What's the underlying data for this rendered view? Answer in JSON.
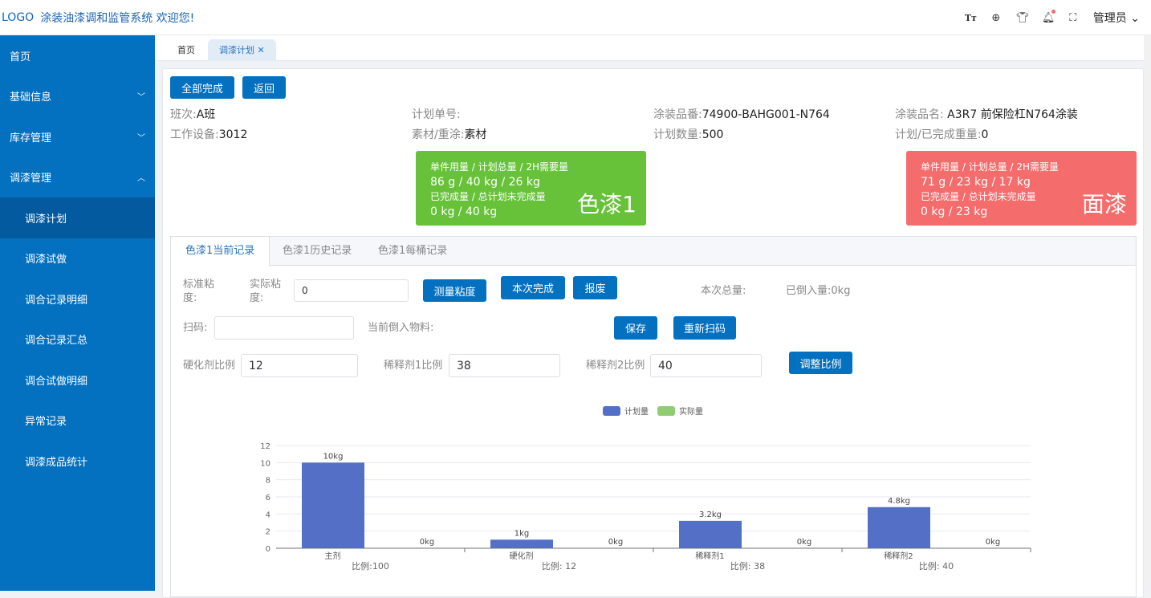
{
  "header": {
    "logo": "LOGO",
    "title": "涂装油漆调和监管系统 欢迎您!",
    "icons": [
      "font-size-icon",
      "plus-circle-icon",
      "shirt-icon",
      "bell-icon",
      "fullscreen-icon"
    ],
    "user": "管理员"
  },
  "sidebar": {
    "items": [
      {
        "label": "首页"
      },
      {
        "label": "基础信息",
        "arrow": "chevron-down"
      },
      {
        "label": "库存管理",
        "arrow": "chevron-down"
      },
      {
        "label": "调漆管理",
        "arrow": "chevron-up"
      },
      {
        "label": "调漆计划",
        "active": true
      },
      {
        "label": "调漆试做"
      },
      {
        "label": "调合记录明细"
      },
      {
        "label": "调合记录汇总"
      },
      {
        "label": "调合试做明细"
      },
      {
        "label": "异常记录"
      },
      {
        "label": "调漆成品统计"
      }
    ]
  },
  "tabs": [
    {
      "label": "首页"
    },
    {
      "label": "调漆计划",
      "active": true
    }
  ],
  "actions": {
    "complete_all": "全部完成",
    "back": "返回"
  },
  "info": {
    "shift_label": "班次:",
    "shift": "A班",
    "plan_no_label": "计划单号:",
    "plan_no": "",
    "part_no_label": "涂装品番:",
    "part_no": "74900-BAHG001-N764",
    "part_name_label": "涂装品名:",
    "part_name": "A3R7 前保险杠N764涂装",
    "device_label": "工作设备:",
    "device": "3012",
    "material_label": "素材/重涂:",
    "material": "素材",
    "plan_qty_label": "计划数量:",
    "plan_qty": "500",
    "weight_label": "计划/已完成重量:",
    "weight": "0"
  },
  "paint_cards": [
    {
      "name": "色漆1",
      "color": "#67c23a",
      "usage_label": "单件用量 / 计划总量 / 2H需要量",
      "usage": "86 g / 40  kg / 26 kg",
      "done_label": "已完成量 / 总计划未完成量",
      "done": "0 kg / 40  kg"
    },
    {
      "name": "面漆",
      "color": "#f56c6c",
      "usage_label": "单件用量 / 计划总量 / 2H需要量",
      "usage": "71 g / 23  kg / 17 kg",
      "done_label": "已完成量 / 总计划未完成量",
      "done": "0 kg / 23  kg"
    }
  ],
  "record_tabs": [
    {
      "label": "色漆1当前记录",
      "active": true
    },
    {
      "label": "色漆1历史记录"
    },
    {
      "label": "色漆1每桶记录"
    }
  ],
  "form": {
    "std_visc_label": "标准粘度:",
    "act_visc_label": "实际粘度:",
    "act_visc": "0",
    "measure": "测量粘度",
    "finish": "本次完成",
    "scrap": "报废",
    "total_label": "本次总量:",
    "poured_label": "已倒入量:",
    "poured": "0kg",
    "scan_label": "扫码:",
    "scan": "",
    "current_label": "当前倒入物料:",
    "save": "保存",
    "rescan": "重新扫码",
    "hardener_label": "硬化剂比例",
    "hardener": "12",
    "thinner1_label": "稀释剂1比例",
    "thinner1": "38",
    "thinner2_label": "稀释剂2比例",
    "thinner2": "40",
    "adjust": "调整比例"
  },
  "chart_data": {
    "type": "bar",
    "categories": [
      "主剂",
      "硬化剂",
      "稀释剂1",
      "稀释剂2"
    ],
    "ratio_labels": [
      "比例:100",
      "比例: 12",
      "比例:  38",
      "比例: 40"
    ],
    "series": [
      {
        "name": "计划量",
        "color": "#5470c6",
        "values": [
          10,
          1,
          3.2,
          4.8
        ],
        "labels": [
          "10kg",
          "1kg",
          "3.2kg",
          "4.8kg"
        ]
      },
      {
        "name": "实际量",
        "color": "#91cc75",
        "values": [
          0,
          0,
          0,
          0
        ],
        "labels": [
          "0kg",
          "0kg",
          "0kg",
          "0kg"
        ]
      }
    ],
    "ylim": [
      0,
      12
    ],
    "yticks": [
      0,
      2,
      4,
      6,
      8,
      10,
      12
    ],
    "grid": true,
    "legend": "top-center"
  }
}
